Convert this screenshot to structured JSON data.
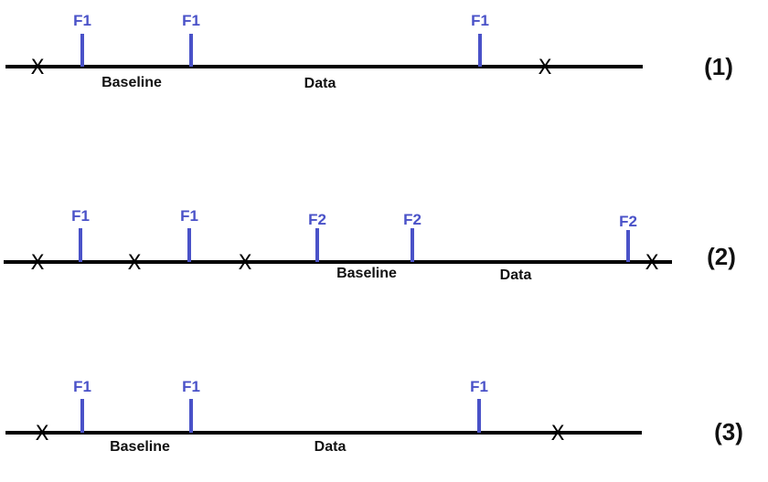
{
  "timelines": [
    {
      "id": "timeline-1",
      "number": "(1)",
      "flags": [
        "F1",
        "F1",
        "F1"
      ],
      "crosses": [
        "X",
        "X"
      ],
      "labels": {
        "baseline": "Baseline",
        "data": "Data"
      }
    },
    {
      "id": "timeline-2",
      "number": "(2)",
      "flags": [
        "F1",
        "F1",
        "F2",
        "F2",
        "F2"
      ],
      "crosses": [
        "X",
        "X",
        "X",
        "X"
      ],
      "labels": {
        "baseline": "Baseline",
        "data": "Data"
      }
    },
    {
      "id": "timeline-3",
      "number": "(3)",
      "flags": [
        "F1",
        "F1",
        "F1"
      ],
      "crosses": [
        "X",
        "X"
      ],
      "labels": {
        "baseline": "Baseline",
        "data": "Data"
      }
    }
  ],
  "colors": {
    "marker": "#4a52c8",
    "line": "#000000",
    "text": "#111111"
  }
}
